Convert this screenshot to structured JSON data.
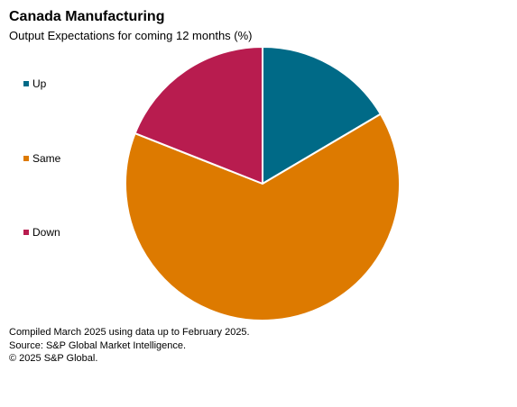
{
  "header": {
    "title": "Canada Manufacturing",
    "subtitle": "Output Expectations for coming 12 months (%)"
  },
  "chart_data": {
    "type": "pie",
    "title": "Canada Manufacturing",
    "subtitle": "Output Expectations for coming 12 months (%)",
    "legend_position": "left",
    "start_angle_deg": 0,
    "direction": "clockwise",
    "slices": [
      {
        "name": "Up",
        "value": 16.5,
        "color": "#006a87"
      },
      {
        "name": "Same",
        "value": 64.5,
        "color": "#dd7a00"
      },
      {
        "name": "Down",
        "value": 19.0,
        "color": "#b81c4f"
      }
    ]
  },
  "footer": {
    "line1": "Compiled March 2025 using data up to February 2025.",
    "line2": "Source: S&P Global Market Intelligence.",
    "line3": "© 2025 S&P Global."
  }
}
